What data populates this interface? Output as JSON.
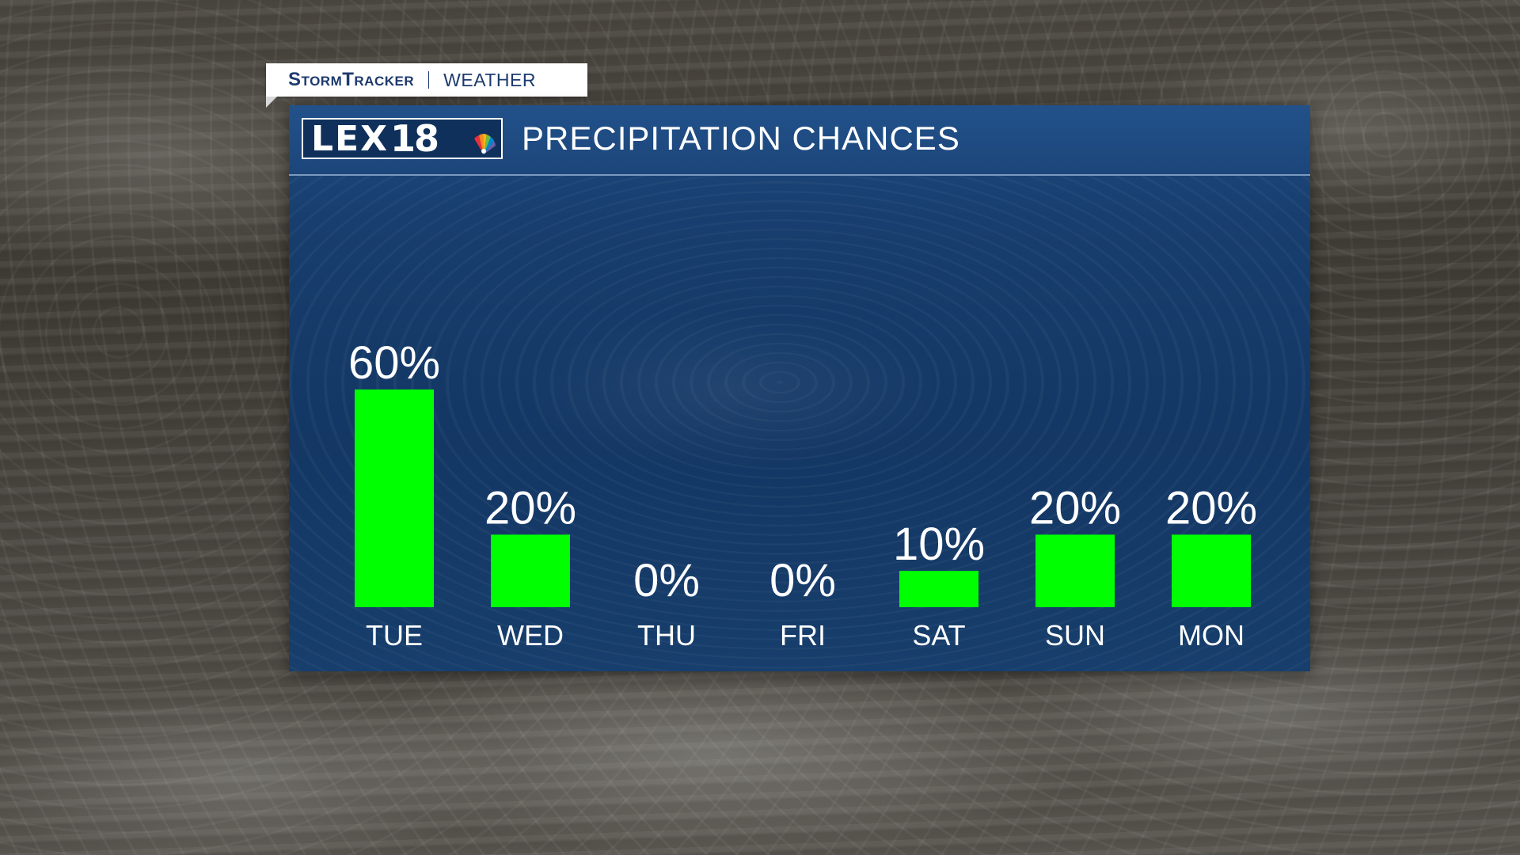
{
  "brand": {
    "name": "StormTracker",
    "section": "WEATHER",
    "logo_letters": "LEX",
    "logo_number": "18"
  },
  "title": "PRECIPITATION CHANCES",
  "colors": {
    "bar": "#00ff00",
    "panel": "#173e6e",
    "text": "#ffffff"
  },
  "icons": {
    "logo_mark": "peacock-icon"
  },
  "chart_data": {
    "type": "bar",
    "title": "PRECIPITATION CHANCES",
    "categories": [
      "TUE",
      "WED",
      "THU",
      "FRI",
      "SAT",
      "SUN",
      "MON"
    ],
    "values": [
      60,
      20,
      0,
      0,
      10,
      20,
      20
    ],
    "value_labels": [
      "60%",
      "20%",
      "0%",
      "0%",
      "10%",
      "20%",
      "20%"
    ],
    "ylim": [
      0,
      60
    ],
    "grid": false,
    "legend": "none"
  }
}
